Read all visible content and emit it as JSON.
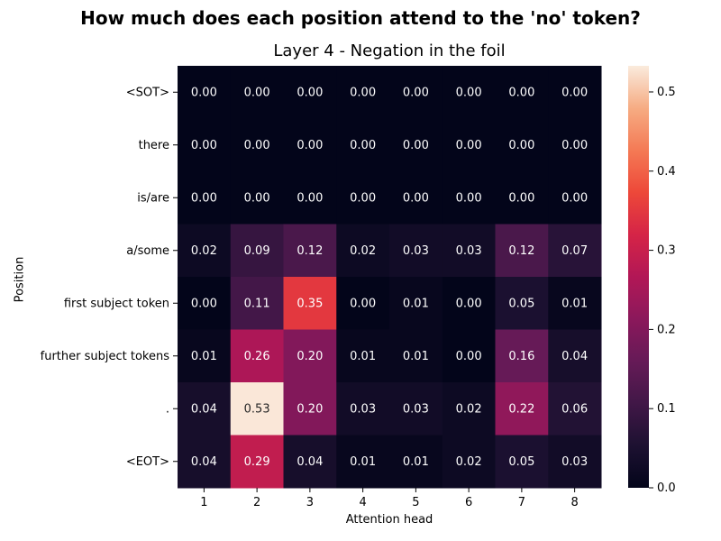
{
  "suptitle": "How much does each position attend to the 'no' token?",
  "chart_data": {
    "type": "heatmap",
    "title": "Layer 4 - Negation in the foil",
    "xlabel": "Attention head",
    "ylabel": "Position",
    "x_categories": [
      "1",
      "2",
      "3",
      "4",
      "5",
      "6",
      "7",
      "8"
    ],
    "y_categories": [
      "<SOT>",
      "there",
      "is/are",
      "a/some",
      "first subject token",
      "further subject tokens",
      ".",
      "<EOT>"
    ],
    "values": [
      [
        0.0,
        0.0,
        0.0,
        0.0,
        0.0,
        0.0,
        0.0,
        0.0
      ],
      [
        0.0,
        0.0,
        0.0,
        0.0,
        0.0,
        0.0,
        0.0,
        0.0
      ],
      [
        0.0,
        0.0,
        0.0,
        0.0,
        0.0,
        0.0,
        0.0,
        0.0
      ],
      [
        0.02,
        0.09,
        0.12,
        0.02,
        0.03,
        0.03,
        0.12,
        0.07
      ],
      [
        0.0,
        0.11,
        0.35,
        0.0,
        0.01,
        0.0,
        0.05,
        0.01
      ],
      [
        0.01,
        0.26,
        0.2,
        0.01,
        0.01,
        0.0,
        0.16,
        0.04
      ],
      [
        0.04,
        0.53,
        0.2,
        0.03,
        0.03,
        0.02,
        0.22,
        0.06
      ],
      [
        0.04,
        0.29,
        0.04,
        0.01,
        0.01,
        0.02,
        0.05,
        0.03
      ]
    ],
    "value_format": "0.00",
    "colormap": "rocket",
    "color_range": [
      0,
      0.533
    ],
    "colorbar_ticks": [
      0.0,
      0.1,
      0.2,
      0.3,
      0.4,
      0.5
    ],
    "colorbar_tick_labels": [
      "0.0",
      "0.1",
      "0.2",
      "0.3",
      "0.4",
      "0.5"
    ],
    "grid": false
  }
}
